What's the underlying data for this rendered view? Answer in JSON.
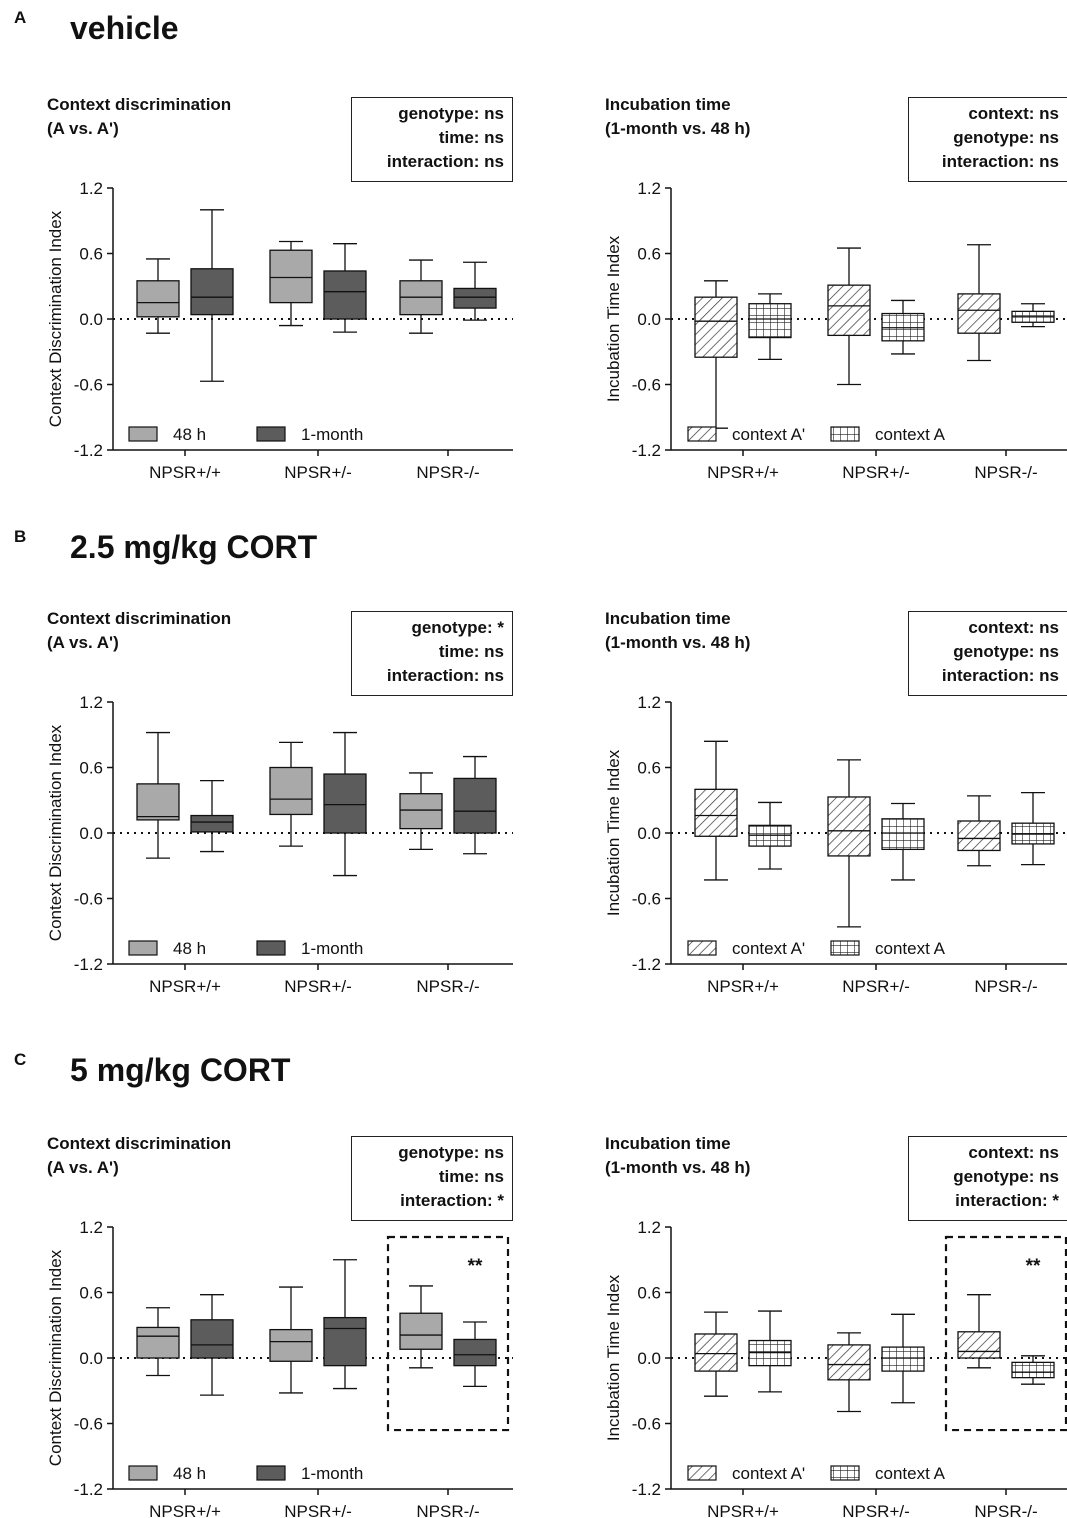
{
  "panels": [
    {
      "letter": "A",
      "condition": "vehicle"
    },
    {
      "letter": "B",
      "condition": "2.5 mg/kg CORT"
    },
    {
      "letter": "C",
      "condition": "5 mg/kg CORT"
    }
  ],
  "colors": {
    "light_48h": "#a9a9a9",
    "dark_1month": "#5c5c5c"
  },
  "chart_data": [
    {
      "type": "box",
      "panel": "A",
      "title": "Context discrimination\n(A vs. A')",
      "ylabel": "Context Discrimination Index",
      "ylim": [
        -1.2,
        1.2
      ],
      "yticks": [
        "1.2",
        "0.6",
        "0.0",
        "-0.6",
        "-1.2"
      ],
      "categories": [
        "NPSR+/+",
        "NPSR+/-",
        "NPSR-/-"
      ],
      "stats": [
        "genotype: ns",
        "time: ns",
        "interaction: ns"
      ],
      "series": [
        {
          "name": "48 h",
          "style": "light",
          "boxes": [
            [
              -0.13,
              0.02,
              0.15,
              0.35,
              0.55
            ],
            [
              -0.06,
              0.15,
              0.38,
              0.63,
              0.71
            ],
            [
              -0.13,
              0.04,
              0.2,
              0.35,
              0.54
            ]
          ]
        },
        {
          "name": "1-month",
          "style": "dark",
          "boxes": [
            [
              -0.57,
              0.04,
              0.2,
              0.46,
              1.0
            ],
            [
              -0.12,
              0.0,
              0.25,
              0.44,
              0.69
            ],
            [
              -0.01,
              0.1,
              0.2,
              0.28,
              0.52
            ]
          ]
        }
      ],
      "annotation": ""
    },
    {
      "type": "box",
      "panel": "A",
      "title": "Incubation time\n(1-month vs. 48 h)",
      "ylabel": "Incubation Time Index",
      "ylim": [
        -1.2,
        1.2
      ],
      "yticks": [
        "1.2",
        "0.6",
        "0.0",
        "-0.6",
        "-1.2"
      ],
      "categories": [
        "NPSR+/+",
        "NPSR+/-",
        "NPSR-/-"
      ],
      "stats": [
        "context: ns",
        "genotype: ns",
        "interaction: ns"
      ],
      "series": [
        {
          "name": "context A'",
          "style": "hatch",
          "boxes": [
            [
              -1.0,
              -0.35,
              -0.02,
              0.2,
              0.35
            ],
            [
              -0.6,
              -0.15,
              0.12,
              0.31,
              0.65
            ],
            [
              -0.38,
              -0.13,
              0.08,
              0.23,
              0.68
            ]
          ]
        },
        {
          "name": "context A",
          "style": "grid",
          "boxes": [
            [
              -0.37,
              -0.17,
              0.0,
              0.14,
              0.23
            ],
            [
              -0.32,
              -0.2,
              -0.08,
              0.05,
              0.17
            ],
            [
              -0.07,
              -0.03,
              0.02,
              0.07,
              0.14
            ]
          ]
        }
      ],
      "annotation": ""
    },
    {
      "type": "box",
      "panel": "B",
      "title": "Context discrimination\n(A vs. A')",
      "ylabel": "Context Discrimination Index",
      "ylim": [
        -1.2,
        1.2
      ],
      "yticks": [
        "1.2",
        "0.6",
        "0.0",
        "-0.6",
        "-1.2"
      ],
      "categories": [
        "NPSR+/+",
        "NPSR+/-",
        "NPSR-/-"
      ],
      "stats": [
        "genotype: *",
        "time: ns",
        "interaction: ns"
      ],
      "series": [
        {
          "name": "48 h",
          "style": "light",
          "boxes": [
            [
              -0.23,
              0.12,
              0.15,
              0.45,
              0.92
            ],
            [
              -0.12,
              0.17,
              0.31,
              0.6,
              0.83
            ],
            [
              -0.15,
              0.04,
              0.21,
              0.36,
              0.55
            ]
          ]
        },
        {
          "name": "1-month",
          "style": "dark",
          "boxes": [
            [
              -0.17,
              0.01,
              0.1,
              0.16,
              0.48
            ],
            [
              -0.39,
              0.0,
              0.26,
              0.54,
              0.92
            ],
            [
              -0.19,
              0.0,
              0.2,
              0.5,
              0.7
            ]
          ]
        }
      ],
      "annotation": ""
    },
    {
      "type": "box",
      "panel": "B",
      "title": "Incubation time\n(1-month vs. 48 h)",
      "ylabel": "Incubation Time Index",
      "ylim": [
        -1.2,
        1.2
      ],
      "yticks": [
        "1.2",
        "0.6",
        "0.0",
        "-0.6",
        "-1.2"
      ],
      "categories": [
        "NPSR+/+",
        "NPSR+/-",
        "NPSR-/-"
      ],
      "stats": [
        "context: ns",
        "genotype: ns",
        "interaction: ns"
      ],
      "series": [
        {
          "name": "context A'",
          "style": "hatch",
          "boxes": [
            [
              -0.43,
              -0.03,
              0.16,
              0.4,
              0.84
            ],
            [
              -0.86,
              -0.21,
              0.02,
              0.33,
              0.67
            ],
            [
              -0.3,
              -0.16,
              -0.05,
              0.11,
              0.34
            ]
          ]
        },
        {
          "name": "context A",
          "style": "grid",
          "boxes": [
            [
              -0.33,
              -0.12,
              -0.02,
              0.07,
              0.28
            ],
            [
              -0.43,
              -0.15,
              0.0,
              0.13,
              0.27
            ],
            [
              -0.29,
              -0.1,
              -0.01,
              0.09,
              0.37
            ]
          ]
        }
      ],
      "annotation": ""
    },
    {
      "type": "box",
      "panel": "C",
      "title": "Context discrimination\n(A vs. A')",
      "ylabel": "Context Discrimination Index",
      "ylim": [
        -1.2,
        1.2
      ],
      "yticks": [
        "1.2",
        "0.6",
        "0.0",
        "-0.6",
        "-1.2"
      ],
      "categories": [
        "NPSR+/+",
        "NPSR+/-",
        "NPSR-/-"
      ],
      "stats": [
        "genotype: ns",
        "time: ns",
        "interaction: *"
      ],
      "series": [
        {
          "name": "48 h",
          "style": "light",
          "boxes": [
            [
              -0.16,
              0.0,
              0.2,
              0.28,
              0.46
            ],
            [
              -0.32,
              -0.03,
              0.15,
              0.26,
              0.65
            ],
            [
              -0.09,
              0.08,
              0.21,
              0.41,
              0.66
            ]
          ]
        },
        {
          "name": "1-month",
          "style": "dark",
          "boxes": [
            [
              -0.34,
              0.0,
              0.12,
              0.35,
              0.58
            ],
            [
              -0.28,
              -0.07,
              0.27,
              0.37,
              0.9
            ],
            [
              -0.26,
              -0.07,
              0.03,
              0.17,
              0.33
            ]
          ]
        }
      ],
      "annotation": "**",
      "highlight_category": "NPSR-/-"
    },
    {
      "type": "box",
      "panel": "C",
      "title": "Incubation time\n(1-month vs. 48 h)",
      "ylabel": "Incubation Time Index",
      "ylim": [
        -1.2,
        1.2
      ],
      "yticks": [
        "1.2",
        "0.6",
        "0.0",
        "-0.6",
        "-1.2"
      ],
      "categories": [
        "NPSR+/+",
        "NPSR+/-",
        "NPSR-/-"
      ],
      "stats": [
        "context: ns",
        "genotype: ns",
        "interaction: *"
      ],
      "series": [
        {
          "name": "context A'",
          "style": "hatch",
          "boxes": [
            [
              -0.35,
              -0.12,
              0.04,
              0.22,
              0.42
            ],
            [
              -0.49,
              -0.2,
              -0.06,
              0.12,
              0.23
            ],
            [
              -0.09,
              0.0,
              0.06,
              0.24,
              0.58
            ]
          ]
        },
        {
          "name": "context A",
          "style": "grid",
          "boxes": [
            [
              -0.31,
              -0.07,
              0.05,
              0.16,
              0.43
            ],
            [
              -0.41,
              -0.12,
              0.0,
              0.1,
              0.4
            ],
            [
              -0.24,
              -0.18,
              -0.13,
              -0.04,
              0.02
            ]
          ]
        }
      ],
      "annotation": "**",
      "highlight_category": "NPSR-/-"
    }
  ]
}
